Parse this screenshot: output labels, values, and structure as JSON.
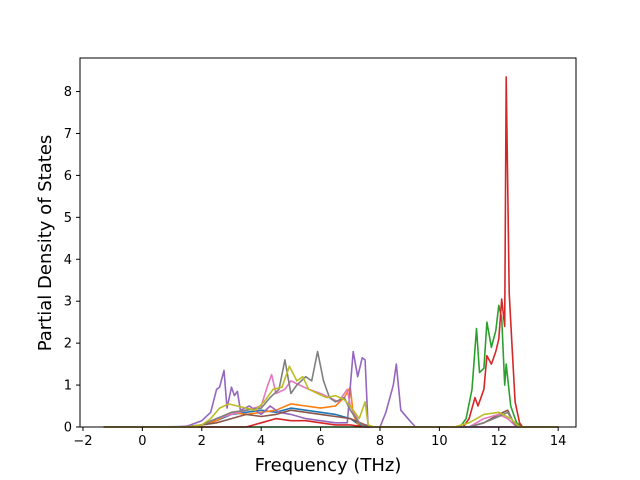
{
  "chart_data": {
    "type": "line",
    "title": "",
    "xlabel": "Frequency (THz)",
    "ylabel": "Partial Density of States",
    "xlim": [
      -2.1,
      14.6
    ],
    "ylim": [
      0,
      8.8
    ],
    "xticks": [
      -2,
      0,
      2,
      4,
      6,
      8,
      10,
      12,
      14
    ],
    "yticks": [
      0,
      1,
      2,
      3,
      4,
      5,
      6,
      7,
      8
    ],
    "grid": false,
    "legend": "none",
    "series": [
      {
        "color": "#1f77b4",
        "points": [
          [
            -1.3,
            0
          ],
          [
            0,
            0
          ],
          [
            1.5,
            0.01
          ],
          [
            2.0,
            0.05
          ],
          [
            2.5,
            0.15
          ],
          [
            3.0,
            0.3
          ],
          [
            3.5,
            0.35
          ],
          [
            4.0,
            0.4
          ],
          [
            4.5,
            0.35
          ],
          [
            5.0,
            0.45
          ],
          [
            5.5,
            0.4
          ],
          [
            6.0,
            0.35
          ],
          [
            6.5,
            0.3
          ],
          [
            7.0,
            0.2
          ],
          [
            7.3,
            0.05
          ],
          [
            7.6,
            0
          ],
          [
            14,
            0
          ]
        ]
      },
      {
        "color": "#ff7f0e",
        "points": [
          [
            -1.3,
            0
          ],
          [
            1.5,
            0
          ],
          [
            2.0,
            0.05
          ],
          [
            2.5,
            0.15
          ],
          [
            3.0,
            0.35
          ],
          [
            3.5,
            0.3
          ],
          [
            4.0,
            0.35
          ],
          [
            4.5,
            0.4
          ],
          [
            5.0,
            0.55
          ],
          [
            5.5,
            0.5
          ],
          [
            6.0,
            0.45
          ],
          [
            6.5,
            0.5
          ],
          [
            6.8,
            0.7
          ],
          [
            7.0,
            0.95
          ],
          [
            7.1,
            0.3
          ],
          [
            7.3,
            0
          ],
          [
            14,
            0
          ]
        ]
      },
      {
        "color": "#2ca02c",
        "points": [
          [
            -1.3,
            0
          ],
          [
            10.7,
            0
          ],
          [
            10.9,
            0.2
          ],
          [
            11.1,
            0.9
          ],
          [
            11.25,
            2.35
          ],
          [
            11.35,
            1.3
          ],
          [
            11.5,
            1.4
          ],
          [
            11.6,
            2.5
          ],
          [
            11.75,
            1.9
          ],
          [
            11.9,
            2.3
          ],
          [
            12.0,
            2.9
          ],
          [
            12.1,
            2.6
          ],
          [
            12.2,
            1.0
          ],
          [
            12.25,
            1.5
          ],
          [
            12.4,
            0.5
          ],
          [
            12.6,
            0.1
          ],
          [
            12.8,
            0
          ],
          [
            14,
            0
          ]
        ]
      },
      {
        "color": "#d62728",
        "points": [
          [
            -1.3,
            0
          ],
          [
            3.5,
            0
          ],
          [
            4.0,
            0.1
          ],
          [
            4.5,
            0.2
          ],
          [
            5.0,
            0.15
          ],
          [
            5.5,
            0.15
          ],
          [
            6.0,
            0.1
          ],
          [
            6.5,
            0.05
          ],
          [
            7.0,
            0.05
          ],
          [
            7.5,
            0
          ],
          [
            10.8,
            0
          ],
          [
            11.0,
            0.2
          ],
          [
            11.2,
            0.7
          ],
          [
            11.3,
            0.5
          ],
          [
            11.5,
            0.9
          ],
          [
            11.6,
            1.7
          ],
          [
            11.75,
            1.5
          ],
          [
            11.9,
            1.8
          ],
          [
            12.0,
            2.1
          ],
          [
            12.1,
            3.05
          ],
          [
            12.2,
            2.4
          ],
          [
            12.25,
            8.35
          ],
          [
            12.35,
            3.2
          ],
          [
            12.45,
            1.9
          ],
          [
            12.55,
            0.6
          ],
          [
            12.7,
            0.1
          ],
          [
            12.8,
            0
          ],
          [
            14,
            0
          ]
        ]
      },
      {
        "color": "#9467bd",
        "points": [
          [
            -1.3,
            0
          ],
          [
            1.0,
            0
          ],
          [
            1.5,
            0.02
          ],
          [
            2.0,
            0.15
          ],
          [
            2.3,
            0.35
          ],
          [
            2.5,
            0.9
          ],
          [
            2.6,
            0.95
          ],
          [
            2.75,
            1.35
          ],
          [
            2.85,
            0.45
          ],
          [
            3.0,
            0.95
          ],
          [
            3.1,
            0.75
          ],
          [
            3.2,
            0.85
          ],
          [
            3.3,
            0.4
          ],
          [
            3.6,
            0.5
          ],
          [
            4.0,
            0.3
          ],
          [
            4.3,
            0.5
          ],
          [
            4.6,
            0.35
          ],
          [
            5.0,
            0.3
          ],
          [
            5.5,
            0.2
          ],
          [
            6.0,
            0.15
          ],
          [
            6.5,
            0.1
          ],
          [
            6.9,
            0.1
          ],
          [
            7.1,
            1.8
          ],
          [
            7.25,
            1.2
          ],
          [
            7.4,
            1.65
          ],
          [
            7.5,
            1.6
          ],
          [
            7.6,
            0.0
          ],
          [
            8.0,
            0
          ],
          [
            8.2,
            0.35
          ],
          [
            8.45,
            1.0
          ],
          [
            8.55,
            1.5
          ],
          [
            8.7,
            0.4
          ],
          [
            9.0,
            0.15
          ],
          [
            9.2,
            0
          ],
          [
            14,
            0
          ]
        ]
      },
      {
        "color": "#8c564b",
        "points": [
          [
            -1.3,
            0
          ],
          [
            1.5,
            0
          ],
          [
            2.0,
            0.05
          ],
          [
            2.5,
            0.1
          ],
          [
            3.0,
            0.2
          ],
          [
            3.5,
            0.3
          ],
          [
            4.0,
            0.25
          ],
          [
            4.5,
            0.3
          ],
          [
            5.0,
            0.4
          ],
          [
            5.5,
            0.35
          ],
          [
            6.0,
            0.3
          ],
          [
            6.5,
            0.25
          ],
          [
            7.0,
            0.2
          ],
          [
            7.5,
            0.05
          ],
          [
            7.8,
            0
          ],
          [
            11.0,
            0
          ],
          [
            11.5,
            0.1
          ],
          [
            12.0,
            0.3
          ],
          [
            12.3,
            0.4
          ],
          [
            12.5,
            0.1
          ],
          [
            12.7,
            0
          ],
          [
            14,
            0
          ]
        ]
      },
      {
        "color": "#e377c2",
        "points": [
          [
            -1.3,
            0
          ],
          [
            1.5,
            0
          ],
          [
            2.0,
            0.05
          ],
          [
            2.5,
            0.2
          ],
          [
            3.0,
            0.3
          ],
          [
            3.5,
            0.4
          ],
          [
            4.0,
            0.5
          ],
          [
            4.2,
            0.95
          ],
          [
            4.35,
            1.25
          ],
          [
            4.5,
            0.8
          ],
          [
            4.8,
            0.9
          ],
          [
            5.0,
            1.1
          ],
          [
            5.3,
            1.0
          ],
          [
            5.6,
            0.9
          ],
          [
            6.0,
            0.8
          ],
          [
            6.3,
            0.7
          ],
          [
            6.6,
            0.6
          ],
          [
            6.9,
            0.9
          ],
          [
            7.0,
            0.5
          ],
          [
            7.3,
            0.1
          ],
          [
            7.5,
            0
          ],
          [
            11.0,
            0
          ],
          [
            11.5,
            0.2
          ],
          [
            12.0,
            0.3
          ],
          [
            12.3,
            0.2
          ],
          [
            12.6,
            0
          ],
          [
            14,
            0
          ]
        ]
      },
      {
        "color": "#7f7f7f",
        "points": [
          [
            -1.3,
            0
          ],
          [
            1.5,
            0
          ],
          [
            2.0,
            0.05
          ],
          [
            2.5,
            0.2
          ],
          [
            3.0,
            0.35
          ],
          [
            3.5,
            0.4
          ],
          [
            4.0,
            0.45
          ],
          [
            4.3,
            0.7
          ],
          [
            4.6,
            0.9
          ],
          [
            4.8,
            1.6
          ],
          [
            5.0,
            0.8
          ],
          [
            5.2,
            1.0
          ],
          [
            5.5,
            1.2
          ],
          [
            5.7,
            1.1
          ],
          [
            5.9,
            1.8
          ],
          [
            6.1,
            1.1
          ],
          [
            6.3,
            0.7
          ],
          [
            6.5,
            0.6
          ],
          [
            6.8,
            0.7
          ],
          [
            7.0,
            0.4
          ],
          [
            7.3,
            0.1
          ],
          [
            7.5,
            0
          ],
          [
            11.0,
            0
          ],
          [
            11.5,
            0.1
          ],
          [
            12.0,
            0.25
          ],
          [
            12.3,
            0.35
          ],
          [
            12.6,
            0
          ],
          [
            14,
            0
          ]
        ]
      },
      {
        "color": "#bcbd22",
        "points": [
          [
            -1.3,
            0
          ],
          [
            1.5,
            0
          ],
          [
            2.0,
            0.05
          ],
          [
            2.3,
            0.2
          ],
          [
            2.6,
            0.45
          ],
          [
            2.9,
            0.55
          ],
          [
            3.2,
            0.5
          ],
          [
            3.5,
            0.45
          ],
          [
            3.8,
            0.4
          ],
          [
            4.1,
            0.6
          ],
          [
            4.4,
            0.9
          ],
          [
            4.7,
            0.95
          ],
          [
            4.95,
            1.45
          ],
          [
            5.2,
            1.1
          ],
          [
            5.4,
            1.2
          ],
          [
            5.6,
            0.9
          ],
          [
            5.9,
            0.8
          ],
          [
            6.2,
            0.7
          ],
          [
            6.5,
            0.75
          ],
          [
            6.8,
            0.65
          ],
          [
            7.0,
            0.5
          ],
          [
            7.3,
            0.2
          ],
          [
            7.5,
            0.6
          ],
          [
            7.6,
            0.05
          ],
          [
            7.8,
            0
          ],
          [
            10.5,
            0
          ],
          [
            11.0,
            0.1
          ],
          [
            11.5,
            0.3
          ],
          [
            12.0,
            0.35
          ],
          [
            12.4,
            0.2
          ],
          [
            12.7,
            0
          ],
          [
            14,
            0
          ]
        ]
      }
    ]
  }
}
